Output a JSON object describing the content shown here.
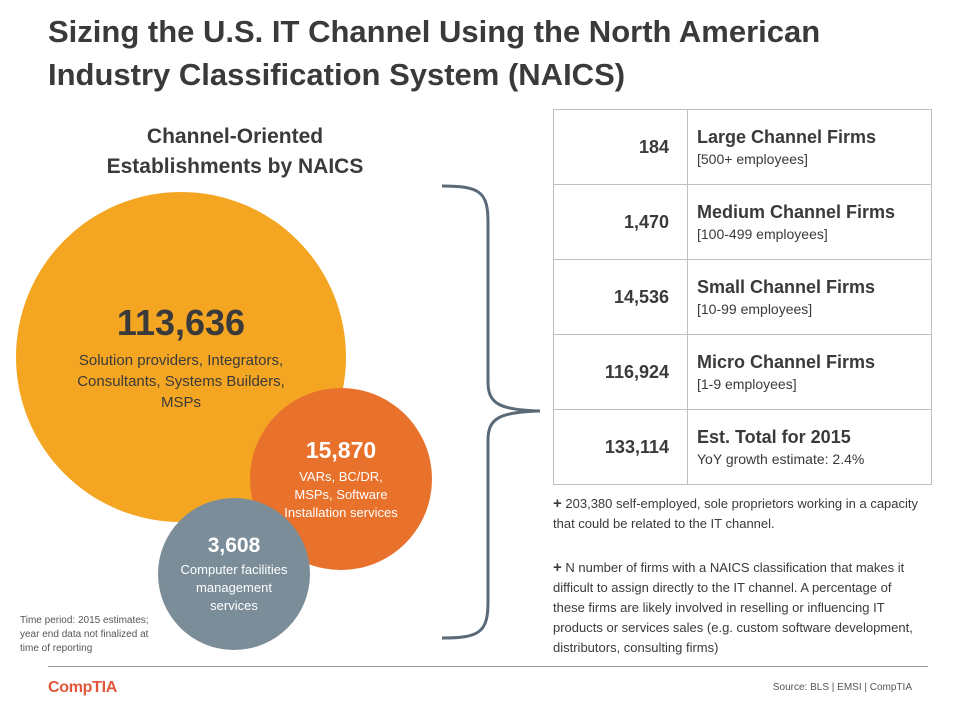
{
  "title": "Sizing the U.S. IT Channel Using the North American Industry Classification System (NAICS)",
  "subtitle": "Channel-Oriented Establishments by NAICS",
  "circles": [
    {
      "value": "113,636",
      "desc": "Solution providers, Integrators, Consultants, Systems Builders, MSPs",
      "color": "#f4a623"
    },
    {
      "value": "15,870",
      "desc": "VARs, BC/DR, MSPs, Software Installation services",
      "color": "#e8712c"
    },
    {
      "value": "3,608",
      "desc": "Computer facilities management services",
      "color": "#7a8d99"
    }
  ],
  "time_note": "Time period: 2015 estimates; year end data not finalized at time of reporting",
  "table": [
    {
      "count": "184",
      "label": "Large Channel Firms",
      "sub": "[500+ employees]"
    },
    {
      "count": "1,470",
      "label": "Medium Channel Firms",
      "sub": "[100-499 employees]"
    },
    {
      "count": "14,536",
      "label": "Small Channel Firms",
      "sub": "[10-99 employees]"
    },
    {
      "count": "116,924",
      "label": "Micro Channel Firms",
      "sub": "[1-9 employees]"
    },
    {
      "count": "133,114",
      "label": "Est. Total for 2015",
      "sub": "YoY growth estimate: 2.4%"
    }
  ],
  "notes": [
    {
      "plus": "+",
      "text": "203,380 self-employed, sole proprietors working in a capacity that could be related to the IT channel."
    },
    {
      "plus": "+",
      "text": "N number of firms with a NAICS classification that makes it difficult to assign directly to the IT channel. A percentage of these firms are likely involved in reselling or influencing IT products or services sales (e.g. custom software development, distributors, consulting firms)"
    }
  ],
  "footer": {
    "logo": "CompTIA",
    "source": "Source: BLS | EMSI | CompTIA"
  }
}
